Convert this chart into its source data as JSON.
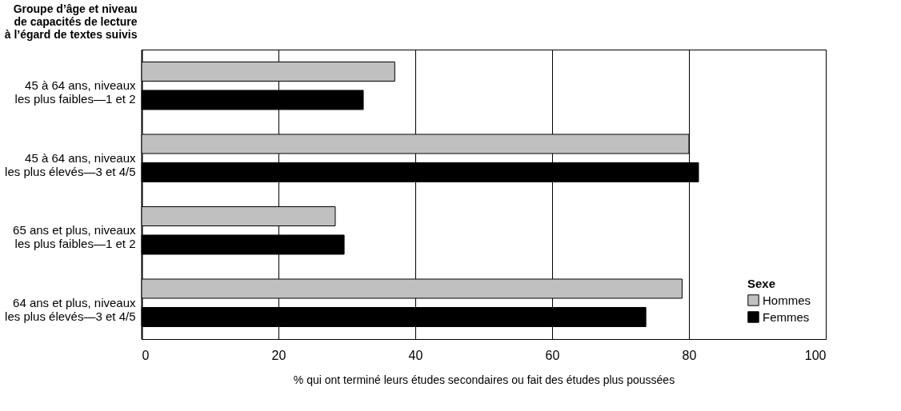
{
  "chart_data": {
    "type": "bar",
    "orientation": "horizontal",
    "ylabel": "Groupe d’âge et niveau\nde capacités de lecture\nà l’égard de textes suivis",
    "xlabel": "% qui ont terminé leurs études secondaires ou fait des études plus poussées",
    "categories": [
      "45 à 64 ans, niveaux\nles plus faibles—1 et 2",
      "45 à 64 ans, niveaux\nles plus élevés—3 et 4/5",
      "65 ans et plus, niveaux\nles plus faibles—1 et 2",
      "64 ans et plus, niveaux\nles plus élevés—3 et 4/5"
    ],
    "series": [
      {
        "name": "Hommes",
        "color": "#c0c0c0",
        "values": [
          37,
          80,
          28.3,
          79
        ]
      },
      {
        "name": "Femmes",
        "color": "#000000",
        "values": [
          32.4,
          81.4,
          29.6,
          73.7
        ]
      }
    ],
    "xlim": [
      0,
      100
    ],
    "xticks": [
      0,
      20,
      40,
      60,
      80,
      100
    ],
    "grid": "x",
    "legend": "bottom right",
    "legend_title": "Sexe"
  }
}
